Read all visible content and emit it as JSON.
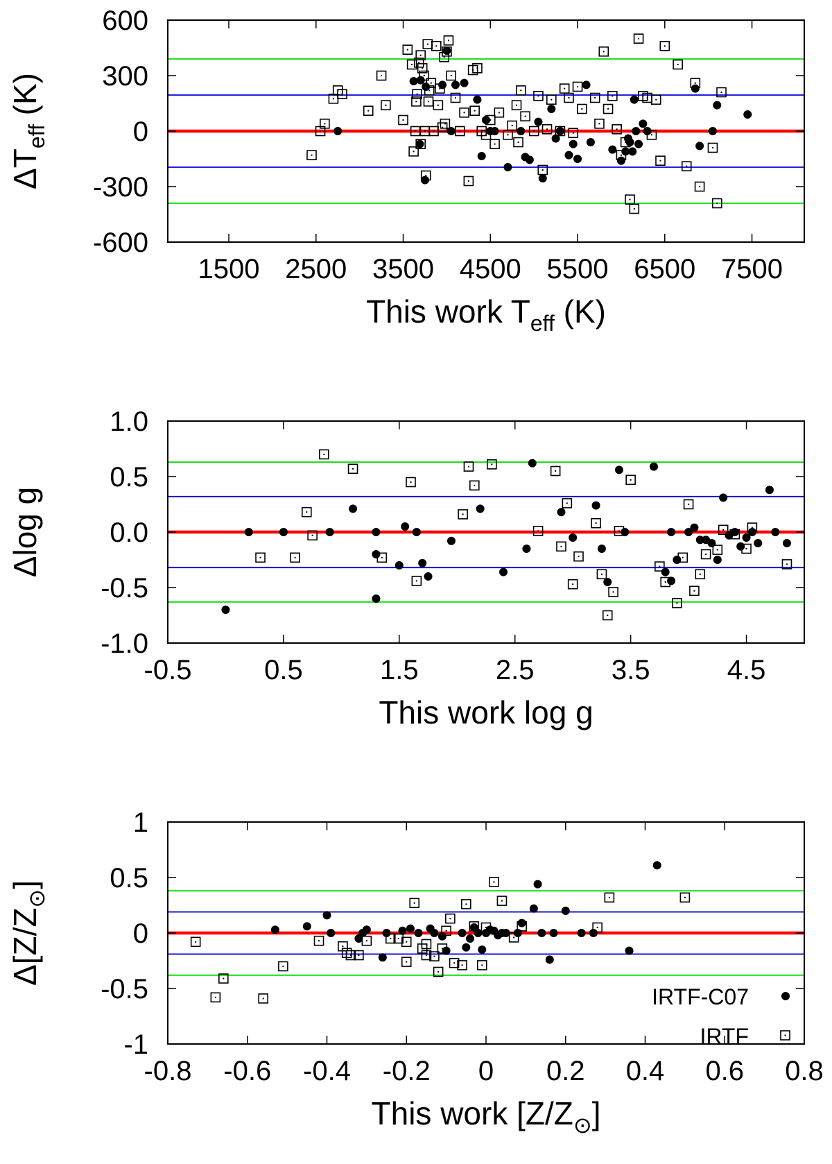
{
  "colors": {
    "zero_line": "#ff0000",
    "sigma1_line": "#0000dd",
    "sigma2_line": "#00dd00",
    "points": "#000000",
    "frame": "#000000"
  },
  "legend": {
    "c07_label": "IRTF-C07",
    "irtf_label": "IRTF",
    "position": "bottom-right"
  },
  "chart_data": [
    {
      "type": "scatter",
      "id": "teff",
      "ylabel": {
        "prefix": "ΔT",
        "sub": "eff",
        "suffix": " (K)"
      },
      "xlabel": {
        "prefix": "This work T",
        "sub": "eff",
        "suffix": " (K)"
      },
      "xlim": [
        800,
        8100
      ],
      "ylim": [
        -600,
        600
      ],
      "xticks": [
        1500,
        2500,
        3500,
        4500,
        5500,
        6500,
        7500
      ],
      "xtick_labels": [
        "1500",
        "2500",
        "3500",
        "4500",
        "5500",
        "6500",
        "7500"
      ],
      "yticks": [
        600,
        300,
        0,
        -300,
        -600
      ],
      "ytick_labels": [
        "600",
        "300",
        "0",
        "-300",
        "-600"
      ],
      "hlines": {
        "zero": 0,
        "sigma1": 195,
        "sigma2": 390
      },
      "series": [
        {
          "name": "IRTF-C07",
          "marker": "filled-circle",
          "x": [
            2750,
            3620,
            3690,
            3700,
            3750,
            3760,
            3950,
            4000,
            4050,
            4100,
            4200,
            4350,
            4400,
            4450,
            4500,
            4550,
            4700,
            4850,
            4900,
            4950,
            5050,
            5100,
            5200,
            5250,
            5300,
            5400,
            5450,
            5500,
            5600,
            5650,
            5900,
            6000,
            6050,
            6080,
            6100,
            6130,
            6150,
            6170,
            6200,
            6250,
            6300,
            6850,
            6900,
            7050,
            7100,
            7450
          ],
          "y": [
            0,
            270,
            -70,
            275,
            -265,
            240,
            250,
            435,
            0,
            250,
            260,
            170,
            -135,
            60,
            0,
            0,
            -195,
            0,
            -140,
            -155,
            50,
            -255,
            120,
            -40,
            0,
            -130,
            -70,
            -150,
            250,
            -60,
            -100,
            -160,
            -110,
            -40,
            -60,
            -110,
            170,
            0,
            -70,
            40,
            0,
            230,
            -80,
            0,
            140,
            90
          ]
        },
        {
          "name": "IRTF",
          "marker": "open-square",
          "x": [
            2450,
            2550,
            2600,
            2700,
            2750,
            2800,
            3100,
            3250,
            3300,
            3500,
            3550,
            3600,
            3620,
            3640,
            3650,
            3660,
            3680,
            3700,
            3700,
            3720,
            3740,
            3750,
            3760,
            3780,
            3790,
            3800,
            3820,
            3850,
            3880,
            3900,
            3920,
            3950,
            3970,
            3980,
            4000,
            4020,
            4050,
            4100,
            4150,
            4200,
            4250,
            4300,
            4320,
            4350,
            4400,
            4450,
            4500,
            4550,
            4600,
            4700,
            4750,
            4800,
            4820,
            4850,
            4900,
            5000,
            5050,
            5100,
            5150,
            5200,
            5300,
            5350,
            5400,
            5450,
            5500,
            5550,
            5700,
            5750,
            5800,
            5850,
            5900,
            5950,
            6000,
            6050,
            6100,
            6150,
            6200,
            6250,
            6300,
            6350,
            6400,
            6450,
            6500,
            6650,
            6750,
            6850,
            6900,
            7050,
            7100,
            7150
          ],
          "y": [
            -130,
            0,
            40,
            175,
            220,
            200,
            110,
            300,
            140,
            60,
            440,
            360,
            -110,
            0,
            160,
            200,
            370,
            410,
            -70,
            340,
            300,
            0,
            -240,
            470,
            160,
            220,
            260,
            0,
            460,
            140,
            230,
            20,
            400,
            40,
            430,
            490,
            300,
            180,
            0,
            100,
            -270,
            330,
            110,
            340,
            0,
            -20,
            60,
            -70,
            100,
            -20,
            30,
            140,
            -60,
            220,
            80,
            0,
            190,
            -210,
            10,
            170,
            0,
            230,
            180,
            -10,
            240,
            120,
            180,
            40,
            430,
            120,
            190,
            10,
            -130,
            -60,
            -370,
            -420,
            500,
            190,
            180,
            -20,
            170,
            -160,
            460,
            360,
            -190,
            260,
            -300,
            -90,
            -390,
            210
          ]
        }
      ]
    },
    {
      "type": "scatter",
      "id": "logg",
      "ylabel": {
        "prefix": "Δlog g",
        "sub": "",
        "suffix": ""
      },
      "xlabel": {
        "prefix": "This work log g",
        "sub": "",
        "suffix": ""
      },
      "xlim": [
        -0.5,
        5.0
      ],
      "ylim": [
        -1.0,
        1.0
      ],
      "xticks": [
        -0.5,
        0.5,
        1.5,
        2.5,
        3.5,
        4.5
      ],
      "xtick_labels": [
        "-0.5",
        "0.5",
        "1.5",
        "2.5",
        "3.5",
        "4.5"
      ],
      "yticks": [
        1.0,
        0.5,
        0.0,
        -0.5,
        -1.0
      ],
      "ytick_labels": [
        "1.0",
        "0.5",
        "0.0",
        "-0.5",
        "-1.0"
      ],
      "hlines": {
        "zero": 0,
        "sigma1": 0.32,
        "sigma2": 0.63
      },
      "series": [
        {
          "name": "IRTF-C07",
          "marker": "filled-circle",
          "x": [
            0.0,
            0.2,
            0.5,
            0.9,
            1.1,
            1.3,
            1.3,
            1.3,
            1.5,
            1.55,
            1.65,
            1.7,
            1.75,
            1.95,
            2.2,
            2.4,
            2.6,
            2.65,
            2.9,
            3.0,
            3.2,
            3.25,
            3.3,
            3.4,
            3.45,
            3.7,
            3.8,
            3.85,
            3.85,
            3.9,
            4.0,
            4.05,
            4.1,
            4.15,
            4.2,
            4.25,
            4.3,
            4.35,
            4.4,
            4.45,
            4.5,
            4.55,
            4.6,
            4.7,
            4.75,
            4.85
          ],
          "y": [
            -0.7,
            0.0,
            0.0,
            0.0,
            0.21,
            0.0,
            -0.2,
            -0.6,
            -0.3,
            0.05,
            0.0,
            -0.28,
            -0.4,
            -0.08,
            0.21,
            -0.36,
            -0.15,
            0.62,
            0.18,
            -0.05,
            0.24,
            -0.15,
            -0.45,
            0.56,
            0.0,
            0.59,
            -0.36,
            -0.44,
            0.0,
            -0.25,
            0.0,
            0.04,
            -0.07,
            -0.07,
            -0.1,
            -0.25,
            0.31,
            -0.03,
            0.0,
            -0.13,
            -0.05,
            0.0,
            -0.1,
            0.38,
            0.0,
            -0.1
          ]
        },
        {
          "name": "IRTF",
          "marker": "open-square",
          "x": [
            0.3,
            0.6,
            0.7,
            0.75,
            0.85,
            1.1,
            1.35,
            1.6,
            1.65,
            2.05,
            2.1,
            2.15,
            2.3,
            2.7,
            2.85,
            2.9,
            2.95,
            3.0,
            3.05,
            3.2,
            3.25,
            3.3,
            3.35,
            3.4,
            3.5,
            3.75,
            3.8,
            3.9,
            3.95,
            4.0,
            4.05,
            4.1,
            4.15,
            4.25,
            4.3,
            4.4,
            4.5,
            4.55,
            4.85
          ],
          "y": [
            -0.23,
            -0.23,
            0.18,
            -0.03,
            0.7,
            0.57,
            -0.23,
            0.45,
            -0.44,
            0.16,
            0.59,
            0.42,
            0.61,
            0.01,
            0.55,
            -0.13,
            0.26,
            -0.47,
            -0.22,
            0.08,
            -0.38,
            -0.75,
            -0.54,
            0.01,
            0.47,
            -0.31,
            -0.45,
            -0.64,
            -0.23,
            0.25,
            -0.53,
            -0.38,
            -0.2,
            -0.16,
            0.02,
            -0.02,
            -0.15,
            0.04,
            -0.29
          ]
        }
      ]
    },
    {
      "type": "scatter",
      "id": "metallicity",
      "ylabel": {
        "prefix": "Δ[Z/Z",
        "sub": "⊙",
        "suffix": "]"
      },
      "xlabel": {
        "prefix": "This work [Z/Z",
        "sub": "⊙",
        "suffix": "]"
      },
      "xlim": [
        -0.8,
        0.8
      ],
      "ylim": [
        -1,
        1
      ],
      "xticks": [
        -0.8,
        -0.6,
        -0.4,
        -0.2,
        0,
        0.2,
        0.4,
        0.6,
        0.8
      ],
      "xtick_labels": [
        "-0.8",
        "-0.6",
        "-0.4",
        "-0.2",
        "0",
        "0.2",
        "0.4",
        "0.6",
        "0.8"
      ],
      "yticks": [
        1,
        0.5,
        0,
        -0.5,
        -1
      ],
      "ytick_labels": [
        "1",
        "0.5",
        "0",
        "-0.5",
        "-1"
      ],
      "hlines": {
        "zero": 0,
        "sigma1": 0.19,
        "sigma2": 0.38
      },
      "series": [
        {
          "name": "IRTF-C07",
          "marker": "filled-circle",
          "x": [
            -0.53,
            -0.45,
            -0.4,
            -0.39,
            -0.32,
            -0.31,
            -0.3,
            -0.26,
            -0.25,
            -0.21,
            -0.19,
            -0.17,
            -0.14,
            -0.13,
            -0.11,
            -0.1,
            -0.06,
            -0.05,
            -0.04,
            -0.03,
            -0.02,
            -0.01,
            0.0,
            0.01,
            0.02,
            0.03,
            0.04,
            0.05,
            0.08,
            0.09,
            0.12,
            0.13,
            0.14,
            0.16,
            0.17,
            0.2,
            0.24,
            0.27,
            0.36,
            0.43
          ],
          "y": [
            0.03,
            0.06,
            0.16,
            0.0,
            -0.05,
            0.0,
            0.03,
            -0.22,
            0.0,
            0.02,
            0.04,
            0.0,
            0.04,
            0.0,
            -0.03,
            -0.16,
            0.0,
            -0.13,
            -0.05,
            0.05,
            0.0,
            -0.15,
            0.0,
            0.03,
            0.02,
            -0.02,
            0.0,
            0.0,
            0.0,
            0.09,
            0.22,
            0.44,
            0.0,
            -0.24,
            0.0,
            0.2,
            0.0,
            0.0,
            -0.16,
            0.61
          ]
        },
        {
          "name": "IRTF",
          "marker": "open-square",
          "x": [
            -0.73,
            -0.68,
            -0.66,
            -0.56,
            -0.51,
            -0.42,
            -0.36,
            -0.35,
            -0.34,
            -0.32,
            -0.3,
            -0.24,
            -0.22,
            -0.2,
            -0.2,
            -0.18,
            -0.16,
            -0.15,
            -0.15,
            -0.13,
            -0.12,
            -0.11,
            -0.1,
            -0.09,
            -0.08,
            -0.06,
            -0.05,
            -0.03,
            -0.01,
            0.0,
            0.02,
            0.04,
            0.07,
            0.09,
            0.28,
            0.31,
            0.5
          ],
          "y": [
            -0.08,
            -0.58,
            -0.41,
            -0.59,
            -0.3,
            -0.07,
            -0.12,
            -0.18,
            -0.2,
            -0.2,
            -0.07,
            -0.05,
            -0.05,
            -0.08,
            -0.26,
            0.27,
            -0.14,
            -0.2,
            -0.1,
            -0.21,
            -0.35,
            -0.14,
            0.02,
            0.13,
            -0.27,
            -0.29,
            0.26,
            0.06,
            -0.29,
            0.05,
            0.46,
            0.29,
            -0.04,
            0.06,
            0.05,
            0.32,
            0.32
          ]
        }
      ]
    }
  ]
}
